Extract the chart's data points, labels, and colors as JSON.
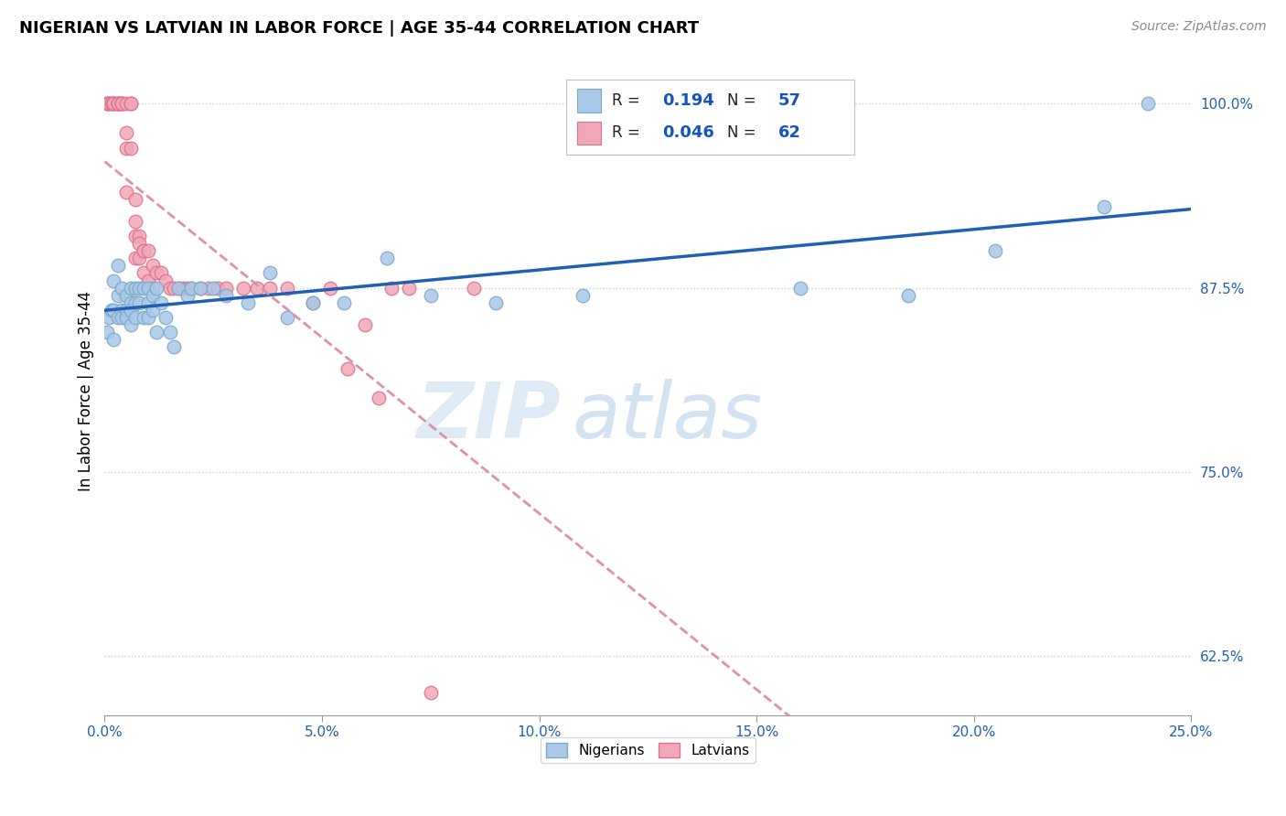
{
  "title": "NIGERIAN VS LATVIAN IN LABOR FORCE | AGE 35-44 CORRELATION CHART",
  "source": "Source: ZipAtlas.com",
  "ylabel": "In Labor Force | Age 35-44",
  "watermark_zip": "ZIP",
  "watermark_atlas": "atlas",
  "legend_blue_r_val": "0.194",
  "legend_blue_n_val": "57",
  "legend_pink_r_val": "0.046",
  "legend_pink_n_val": "62",
  "blue_scatter_color": "#aac8e8",
  "blue_scatter_edge": "#7aaac8",
  "pink_scatter_color": "#f0a8b8",
  "pink_scatter_edge": "#e07090",
  "blue_line_color": "#2060b0",
  "pink_line_color": "#e090a8",
  "xlim": [
    0.0,
    0.25
  ],
  "ylim": [
    0.585,
    1.025
  ],
  "xticks": [
    0.0,
    0.05,
    0.1,
    0.15,
    0.2,
    0.25
  ],
  "yticks": [
    0.625,
    0.75,
    0.875,
    1.0
  ],
  "xticklabels": [
    "0.0%",
    "5.0%",
    "10.0%",
    "15.0%",
    "20.0%",
    "25.0%"
  ],
  "yticklabels": [
    "62.5%",
    "75.0%",
    "87.5%",
    "100.0%"
  ],
  "nigerians_x": [
    0.0005,
    0.001,
    0.0015,
    0.002,
    0.002,
    0.002,
    0.003,
    0.003,
    0.003,
    0.004,
    0.004,
    0.004,
    0.005,
    0.005,
    0.005,
    0.006,
    0.006,
    0.006,
    0.006,
    0.007,
    0.007,
    0.007,
    0.008,
    0.008,
    0.009,
    0.009,
    0.01,
    0.01,
    0.01,
    0.011,
    0.011,
    0.012,
    0.012,
    0.013,
    0.014,
    0.015,
    0.016,
    0.017,
    0.019,
    0.02,
    0.022,
    0.025,
    0.028,
    0.033,
    0.038,
    0.042,
    0.048,
    0.055,
    0.065,
    0.075,
    0.09,
    0.11,
    0.16,
    0.185,
    0.205,
    0.23,
    0.24
  ],
  "nigerians_y": [
    0.845,
    0.855,
    0.86,
    0.88,
    0.86,
    0.84,
    0.89,
    0.87,
    0.855,
    0.875,
    0.86,
    0.855,
    0.87,
    0.86,
    0.855,
    0.875,
    0.865,
    0.86,
    0.85,
    0.875,
    0.865,
    0.855,
    0.875,
    0.865,
    0.875,
    0.855,
    0.875,
    0.865,
    0.855,
    0.87,
    0.86,
    0.875,
    0.845,
    0.865,
    0.855,
    0.845,
    0.835,
    0.875,
    0.87,
    0.875,
    0.875,
    0.875,
    0.87,
    0.865,
    0.885,
    0.855,
    0.865,
    0.865,
    0.895,
    0.87,
    0.865,
    0.87,
    0.875,
    0.87,
    0.9,
    0.93,
    1.0
  ],
  "latvians_x": [
    0.0005,
    0.0005,
    0.001,
    0.001,
    0.0015,
    0.002,
    0.002,
    0.002,
    0.003,
    0.003,
    0.003,
    0.003,
    0.004,
    0.004,
    0.004,
    0.005,
    0.005,
    0.005,
    0.005,
    0.006,
    0.006,
    0.006,
    0.007,
    0.007,
    0.007,
    0.007,
    0.008,
    0.008,
    0.008,
    0.009,
    0.009,
    0.009,
    0.01,
    0.01,
    0.011,
    0.011,
    0.012,
    0.013,
    0.014,
    0.015,
    0.016,
    0.017,
    0.018,
    0.019,
    0.02,
    0.022,
    0.024,
    0.026,
    0.028,
    0.032,
    0.035,
    0.038,
    0.042,
    0.048,
    0.052,
    0.056,
    0.06,
    0.063,
    0.066,
    0.07,
    0.075,
    0.085
  ],
  "latvians_y": [
    1.0,
    1.0,
    1.0,
    1.0,
    1.0,
    1.0,
    1.0,
    1.0,
    1.0,
    1.0,
    1.0,
    1.0,
    1.0,
    1.0,
    1.0,
    1.0,
    0.98,
    0.97,
    0.94,
    1.0,
    1.0,
    0.97,
    0.935,
    0.92,
    0.91,
    0.895,
    0.91,
    0.905,
    0.895,
    0.9,
    0.9,
    0.885,
    0.9,
    0.88,
    0.89,
    0.875,
    0.885,
    0.885,
    0.88,
    0.875,
    0.875,
    0.875,
    0.875,
    0.875,
    0.875,
    0.875,
    0.875,
    0.875,
    0.875,
    0.875,
    0.875,
    0.875,
    0.875,
    0.865,
    0.875,
    0.82,
    0.85,
    0.8,
    0.875,
    0.875,
    0.6,
    0.875
  ],
  "background_color": "#ffffff",
  "grid_color": "#d0d0d0"
}
